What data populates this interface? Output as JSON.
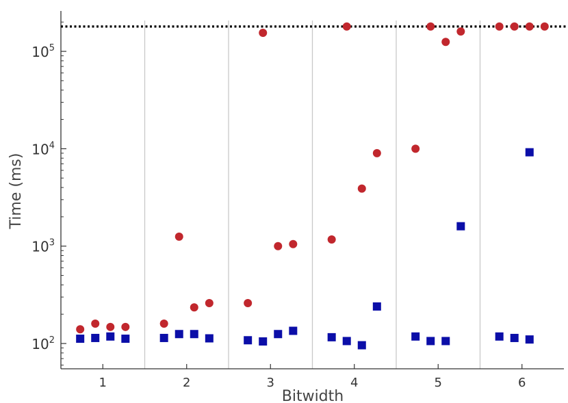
{
  "chart_data": {
    "type": "scatter",
    "xlabel": "Bitwidth",
    "ylabel": "Time (ms)",
    "x_scale": "categorical",
    "y_scale": "log",
    "ylim": [
      55,
      260000
    ],
    "categories": [
      "1",
      "2",
      "3",
      "4",
      "5",
      "6"
    ],
    "y_ticks": [
      {
        "base": "10",
        "exp": "2",
        "value": 100
      },
      {
        "base": "10",
        "exp": "3",
        "value": 1000
      },
      {
        "base": "10",
        "exp": "4",
        "value": 10000
      },
      {
        "base": "10",
        "exp": "5",
        "value": 100000
      }
    ],
    "timeout_line": 180000,
    "grid": "vertical separators between categories",
    "legend": "none",
    "series": [
      {
        "marker": "circle",
        "color": "#c1272d",
        "points": [
          {
            "x": 0.73,
            "y": 140
          },
          {
            "x": 0.91,
            "y": 160
          },
          {
            "x": 1.09,
            "y": 148
          },
          {
            "x": 1.27,
            "y": 148
          },
          {
            "x": 1.73,
            "y": 160
          },
          {
            "x": 1.91,
            "y": 1250
          },
          {
            "x": 2.09,
            "y": 235
          },
          {
            "x": 2.27,
            "y": 260
          },
          {
            "x": 2.73,
            "y": 260
          },
          {
            "x": 2.91,
            "y": 155000
          },
          {
            "x": 3.09,
            "y": 1000
          },
          {
            "x": 3.27,
            "y": 1050
          },
          {
            "x": 3.73,
            "y": 1170
          },
          {
            "x": 3.91,
            "y": 180000
          },
          {
            "x": 4.09,
            "y": 3900
          },
          {
            "x": 4.27,
            "y": 9000
          },
          {
            "x": 4.73,
            "y": 10000
          },
          {
            "x": 4.91,
            "y": 180000
          },
          {
            "x": 5.09,
            "y": 125000
          },
          {
            "x": 5.27,
            "y": 160000
          },
          {
            "x": 5.73,
            "y": 180000
          },
          {
            "x": 5.91,
            "y": 180000
          },
          {
            "x": 6.09,
            "y": 180000
          },
          {
            "x": 6.27,
            "y": 180000
          }
        ]
      },
      {
        "marker": "square",
        "color": "#0b0ea8",
        "points": [
          {
            "x": 0.73,
            "y": 112
          },
          {
            "x": 0.91,
            "y": 114
          },
          {
            "x": 1.09,
            "y": 118
          },
          {
            "x": 1.27,
            "y": 112
          },
          {
            "x": 1.73,
            "y": 114
          },
          {
            "x": 1.91,
            "y": 125
          },
          {
            "x": 2.09,
            "y": 125
          },
          {
            "x": 2.27,
            "y": 113
          },
          {
            "x": 2.73,
            "y": 108
          },
          {
            "x": 2.91,
            "y": 105
          },
          {
            "x": 3.09,
            "y": 125
          },
          {
            "x": 3.27,
            "y": 135
          },
          {
            "x": 3.73,
            "y": 116
          },
          {
            "x": 3.91,
            "y": 106
          },
          {
            "x": 4.09,
            "y": 96
          },
          {
            "x": 4.27,
            "y": 240
          },
          {
            "x": 4.73,
            "y": 118
          },
          {
            "x": 4.91,
            "y": 106
          },
          {
            "x": 5.09,
            "y": 106
          },
          {
            "x": 5.27,
            "y": 1600
          },
          {
            "x": 5.73,
            "y": 118
          },
          {
            "x": 5.91,
            "y": 114
          },
          {
            "x": 6.09,
            "y": 110
          },
          {
            "x": 6.09,
            "y": 9200
          }
        ]
      }
    ]
  }
}
